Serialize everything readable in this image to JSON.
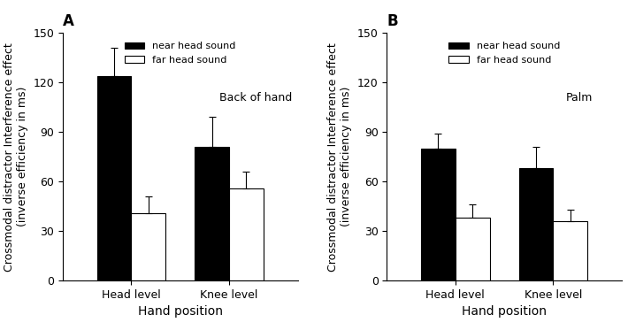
{
  "chart_data": [
    {
      "type": "bar",
      "title": "A",
      "x_label": "Hand position",
      "y_label": "Crossmodal distractor Interference effect\n(inverse efficiency in ms)",
      "annotations": [
        "Back of hand"
      ],
      "categories": [
        "Head level",
        "Knee level"
      ],
      "series": [
        {
          "name": "near head sound",
          "color": "#000000",
          "values": [
            124,
            81
          ],
          "errors": [
            17,
            18
          ]
        },
        {
          "name": "far head sound",
          "color": "#ffffff",
          "values": [
            41,
            56
          ],
          "errors": [
            10,
            10
          ]
        }
      ],
      "ylim": [
        0,
        150
      ],
      "yticks": [
        0,
        30,
        60,
        90,
        120,
        150
      ],
      "legend": "upper center",
      "grid": false
    },
    {
      "type": "bar",
      "title": "B",
      "x_label": "Hand position",
      "y_label": "Crossmodal distractor Interference effect\n(inverse efficiency in ms)",
      "annotations": [
        "Palm"
      ],
      "categories": [
        "Head level",
        "Knee level"
      ],
      "series": [
        {
          "name": "near head sound",
          "color": "#000000",
          "values": [
            80,
            68
          ],
          "errors": [
            9,
            13
          ]
        },
        {
          "name": "far head sound",
          "color": "#ffffff",
          "values": [
            38,
            36
          ],
          "errors": [
            8,
            7
          ]
        }
      ],
      "ylim": [
        0,
        150
      ],
      "yticks": [
        0,
        30,
        60,
        90,
        120,
        150
      ],
      "legend": "upper center",
      "grid": false
    }
  ]
}
